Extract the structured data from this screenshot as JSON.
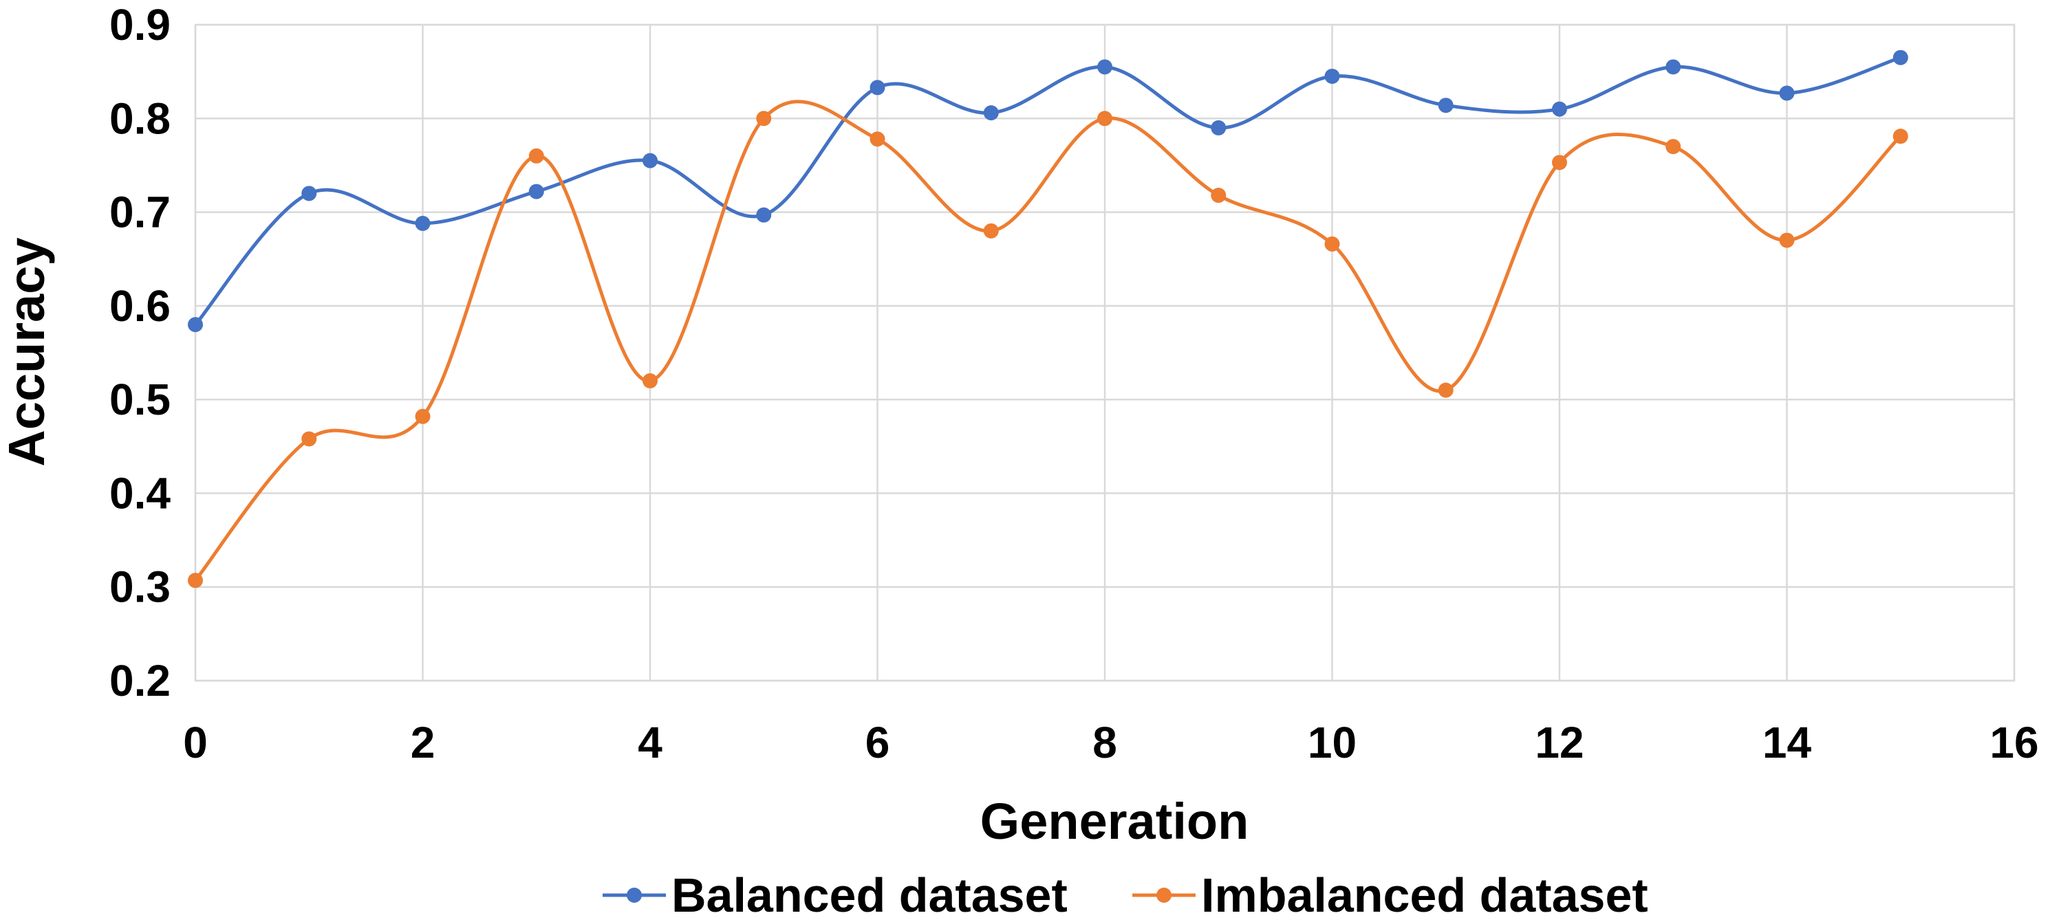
{
  "chart_data": {
    "type": "line",
    "smooth": true,
    "xlabel": "Generation",
    "ylabel": "Accuracy",
    "xlim": [
      0,
      16
    ],
    "ylim": [
      0.2,
      0.9
    ],
    "xticks": [
      "0",
      "2",
      "4",
      "6",
      "8",
      "10",
      "12",
      "14",
      "16"
    ],
    "yticks": [
      "0.2",
      "0.3",
      "0.4",
      "0.5",
      "0.6",
      "0.7",
      "0.8",
      "0.9"
    ],
    "grid": true,
    "legend_position": "bottom",
    "x": [
      0,
      1,
      2,
      3,
      4,
      5,
      6,
      7,
      8,
      9,
      10,
      11,
      12,
      13,
      14,
      15
    ],
    "series": [
      {
        "name": "Balanced dataset",
        "color": "#4472c4",
        "values": [
          0.58,
          0.72,
          0.688,
          0.722,
          0.755,
          0.697,
          0.833,
          0.806,
          0.855,
          0.79,
          0.845,
          0.814,
          0.81,
          0.855,
          0.827,
          0.865
        ]
      },
      {
        "name": "Imbalanced dataset",
        "color": "#ed7d31",
        "values": [
          0.307,
          0.458,
          0.482,
          0.76,
          0.52,
          0.8,
          0.778,
          0.68,
          0.8,
          0.718,
          0.666,
          0.51,
          0.753,
          0.77,
          0.67,
          0.781
        ]
      }
    ]
  }
}
